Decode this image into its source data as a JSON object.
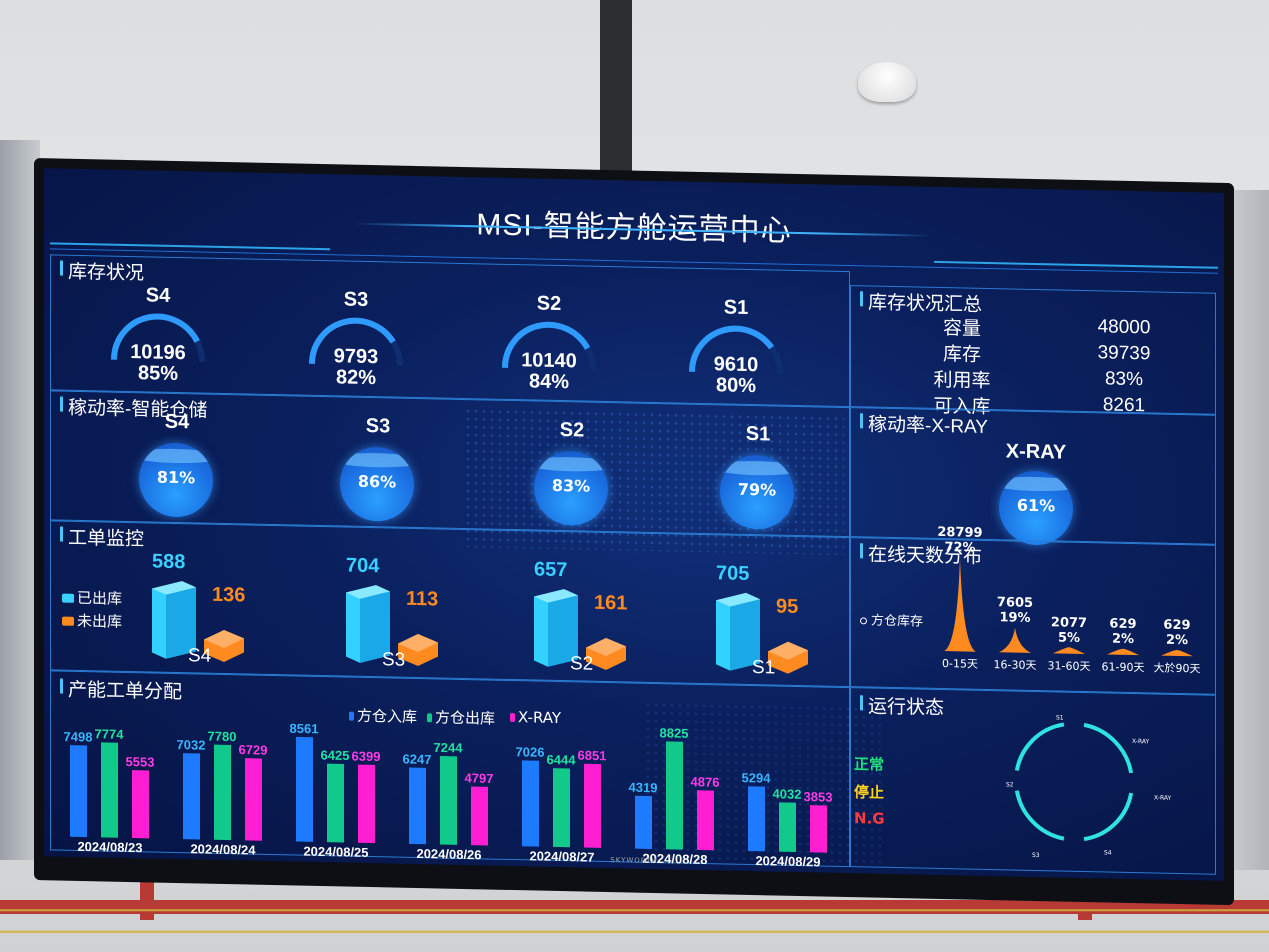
{
  "window": {
    "title": "MSI-智能方舱运营中心",
    "tv_brand": "SKYWORTH"
  },
  "inventory": {
    "title": "库存状况",
    "gauges": [
      {
        "name": "S4",
        "value": "10196",
        "percent": "85%",
        "fill": 0.85
      },
      {
        "name": "S3",
        "value": "9793",
        "percent": "82%",
        "fill": 0.82
      },
      {
        "name": "S2",
        "value": "10140",
        "percent": "84%",
        "fill": 0.84
      },
      {
        "name": "S1",
        "value": "9610",
        "percent": "80%",
        "fill": 0.8
      }
    ]
  },
  "summary": {
    "title": "库存状况汇总",
    "rows": [
      {
        "key": "容量",
        "value": "48000"
      },
      {
        "key": "库存",
        "value": "39739"
      },
      {
        "key": "利用率",
        "value": "83%"
      },
      {
        "key": "可入库",
        "value": "8261"
      }
    ]
  },
  "utilization": {
    "title": "稼动率-智能仓储",
    "items": [
      {
        "name": "S4",
        "value": "81%"
      },
      {
        "name": "S3",
        "value": "86%"
      },
      {
        "name": "S2",
        "value": "83%"
      },
      {
        "name": "S1",
        "value": "79%"
      }
    ]
  },
  "xray": {
    "title": "稼动率-X-RAY",
    "name": "X-RAY",
    "value": "61%"
  },
  "workorder": {
    "title": "工单监控",
    "legend": [
      "已出库",
      "未出库"
    ],
    "items": [
      {
        "name": "S4",
        "shipped": "588",
        "pending": "136"
      },
      {
        "name": "S3",
        "shipped": "704",
        "pending": "113"
      },
      {
        "name": "S2",
        "shipped": "657",
        "pending": "161"
      },
      {
        "name": "S1",
        "shipped": "705",
        "pending": "95"
      }
    ]
  },
  "online": {
    "title": "在线天数分布",
    "legend": "方仓库存",
    "buckets": [
      {
        "label": "0-15天",
        "count": "28799",
        "percent": "72%",
        "share": 0.72
      },
      {
        "label": "16-30天",
        "count": "7605",
        "percent": "19%",
        "share": 0.19
      },
      {
        "label": "31-60天",
        "count": "2077",
        "percent": "5%",
        "share": 0.05
      },
      {
        "label": "61-90天",
        "count": "629",
        "percent": "2%",
        "share": 0.02
      },
      {
        "label": "大於90天",
        "count": "629",
        "percent": "2%",
        "share": 0.02
      }
    ]
  },
  "production": {
    "title": "产能工单分配",
    "legend": [
      "方仓入库",
      "方仓出库",
      "X-RAY"
    ],
    "colors": {
      "in": "#1e7bff",
      "out": "#12c98c",
      "xray": "#ff1fd2",
      "in_label": "#39b6ff",
      "out_label": "#22e3a0",
      "xray_label": "#ff3be6"
    }
  },
  "status": {
    "title": "运行状态",
    "legend": [
      "正常",
      "停止",
      "N.G"
    ],
    "colors": {
      "normal": "#22e07a",
      "stop": "#ffd21e",
      "ng": "#ff3b3b"
    },
    "ring_labels": [
      "S1",
      "X-RAY",
      "S2",
      "X-RAY",
      "S3",
      "S4"
    ]
  },
  "chart_data": {
    "type": "bar",
    "categories": [
      "2024/08/23",
      "2024/08/24",
      "2024/08/25",
      "2024/08/26",
      "2024/08/27",
      "2024/08/28",
      "2024/08/29"
    ],
    "series": [
      {
        "name": "方仓入库",
        "values": [
          7498,
          7032,
          8561,
          6247,
          7026,
          4319,
          5294
        ]
      },
      {
        "name": "方仓出库",
        "values": [
          7774,
          7780,
          6425,
          7244,
          6444,
          8825,
          4032
        ]
      },
      {
        "name": "X-RAY",
        "values": [
          5553,
          6729,
          6399,
          4797,
          6851,
          4876,
          3853
        ]
      }
    ],
    "ylim": [
      0,
      9000
    ]
  }
}
